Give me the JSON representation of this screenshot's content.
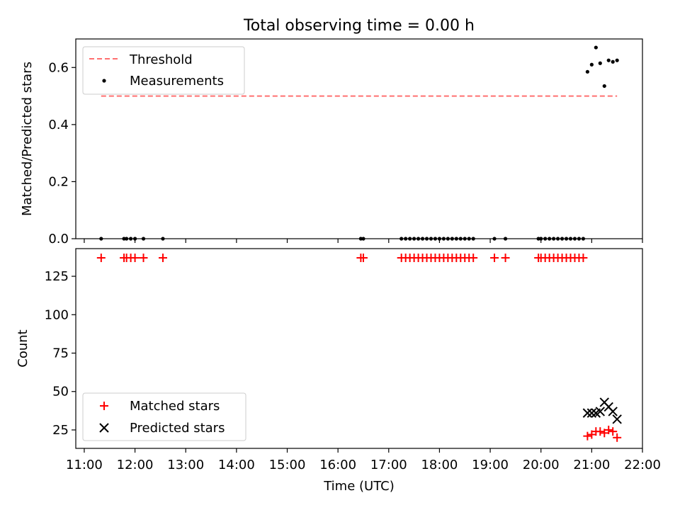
{
  "chart_data": [
    {
      "type": "scatter",
      "title": "Total observing time = 0.00 h",
      "xlabel": "",
      "ylabel": "Matched/Predicted stars",
      "xlim": [
        "10:50",
        "22:00"
      ],
      "ylim": [
        0,
        0.7
      ],
      "x_ticks": [
        "11:00",
        "12:00",
        "13:00",
        "14:00",
        "15:00",
        "16:00",
        "17:00",
        "18:00",
        "19:00",
        "20:00",
        "21:00",
        "22:00"
      ],
      "y_ticks": [
        "0.0",
        "0.2",
        "0.4",
        "0.6"
      ],
      "grid": false,
      "legend_position": "upper-left",
      "threshold": {
        "name": "Threshold",
        "value": 0.5,
        "x": [
          "11:20",
          "21:30"
        ],
        "color": "#ff7070",
        "style": "dashed"
      },
      "series": [
        {
          "name": "Measurements",
          "color": "#000000",
          "marker": "dot",
          "points": [
            [
              "11:20",
              0
            ],
            [
              "11:47",
              0
            ],
            [
              "11:50",
              0
            ],
            [
              "11:55",
              0
            ],
            [
              "12:00",
              0
            ],
            [
              "12:10",
              0
            ],
            [
              "12:33",
              0
            ],
            [
              "16:27",
              0
            ],
            [
              "16:30",
              0
            ],
            [
              "17:15",
              0
            ],
            [
              "17:20",
              0
            ],
            [
              "17:25",
              0
            ],
            [
              "17:30",
              0
            ],
            [
              "17:35",
              0
            ],
            [
              "17:40",
              0
            ],
            [
              "17:45",
              0
            ],
            [
              "17:50",
              0
            ],
            [
              "17:55",
              0
            ],
            [
              "18:00",
              0
            ],
            [
              "18:05",
              0
            ],
            [
              "18:10",
              0
            ],
            [
              "18:15",
              0
            ],
            [
              "18:20",
              0
            ],
            [
              "18:25",
              0
            ],
            [
              "18:30",
              0
            ],
            [
              "18:35",
              0
            ],
            [
              "18:40",
              0
            ],
            [
              "19:05",
              0
            ],
            [
              "19:18",
              0
            ],
            [
              "19:57",
              0
            ],
            [
              "20:00",
              0
            ],
            [
              "20:05",
              0
            ],
            [
              "20:10",
              0
            ],
            [
              "20:15",
              0
            ],
            [
              "20:20",
              0
            ],
            [
              "20:25",
              0
            ],
            [
              "20:30",
              0
            ],
            [
              "20:35",
              0
            ],
            [
              "20:40",
              0
            ],
            [
              "20:45",
              0
            ],
            [
              "20:50",
              0
            ],
            [
              "20:55",
              0.585
            ],
            [
              "21:00",
              0.61
            ],
            [
              "21:05",
              0.67
            ],
            [
              "21:10",
              0.615
            ],
            [
              "21:15",
              0.535
            ],
            [
              "21:20",
              0.625
            ],
            [
              "21:25",
              0.62
            ],
            [
              "21:30",
              0.625
            ]
          ]
        }
      ]
    },
    {
      "type": "scatter",
      "title": "",
      "xlabel": "Time (UTC)",
      "ylabel": "Count",
      "xlim": [
        "10:50",
        "22:00"
      ],
      "ylim": [
        13,
        143
      ],
      "x_ticks": [
        "11:00",
        "12:00",
        "13:00",
        "14:00",
        "15:00",
        "16:00",
        "17:00",
        "18:00",
        "19:00",
        "20:00",
        "21:00",
        "22:00"
      ],
      "y_ticks": [
        "25",
        "50",
        "75",
        "100",
        "125"
      ],
      "grid": false,
      "legend_position": "lower-left",
      "series": [
        {
          "name": "Matched stars",
          "color": "#ff0000",
          "marker": "plus",
          "points": [
            [
              "11:20",
              137
            ],
            [
              "11:47",
              137
            ],
            [
              "11:50",
              137
            ],
            [
              "11:55",
              137
            ],
            [
              "12:00",
              137
            ],
            [
              "12:10",
              137
            ],
            [
              "12:33",
              137
            ],
            [
              "16:27",
              137
            ],
            [
              "16:30",
              137
            ],
            [
              "17:15",
              137
            ],
            [
              "17:20",
              137
            ],
            [
              "17:25",
              137
            ],
            [
              "17:30",
              137
            ],
            [
              "17:35",
              137
            ],
            [
              "17:40",
              137
            ],
            [
              "17:45",
              137
            ],
            [
              "17:50",
              137
            ],
            [
              "17:55",
              137
            ],
            [
              "18:00",
              137
            ],
            [
              "18:05",
              137
            ],
            [
              "18:10",
              137
            ],
            [
              "18:15",
              137
            ],
            [
              "18:20",
              137
            ],
            [
              "18:25",
              137
            ],
            [
              "18:30",
              137
            ],
            [
              "18:35",
              137
            ],
            [
              "18:40",
              137
            ],
            [
              "19:05",
              137
            ],
            [
              "19:18",
              137
            ],
            [
              "19:57",
              137
            ],
            [
              "20:00",
              137
            ],
            [
              "20:05",
              137
            ],
            [
              "20:10",
              137
            ],
            [
              "20:15",
              137
            ],
            [
              "20:20",
              137
            ],
            [
              "20:25",
              137
            ],
            [
              "20:30",
              137
            ],
            [
              "20:35",
              137
            ],
            [
              "20:40",
              137
            ],
            [
              "20:45",
              137
            ],
            [
              "20:50",
              137
            ],
            [
              "20:55",
              21
            ],
            [
              "21:00",
              22
            ],
            [
              "21:05",
              24
            ],
            [
              "21:10",
              24
            ],
            [
              "21:15",
              23
            ],
            [
              "21:20",
              25
            ],
            [
              "21:25",
              24
            ],
            [
              "21:30",
              20
            ]
          ]
        },
        {
          "name": "Predicted stars",
          "color": "#000000",
          "marker": "x",
          "points": [
            [
              "20:55",
              36
            ],
            [
              "21:00",
              36
            ],
            [
              "21:05",
              36
            ],
            [
              "21:10",
              37
            ],
            [
              "21:15",
              43
            ],
            [
              "21:20",
              40
            ],
            [
              "21:25",
              37
            ],
            [
              "21:30",
              32
            ]
          ]
        }
      ]
    }
  ]
}
